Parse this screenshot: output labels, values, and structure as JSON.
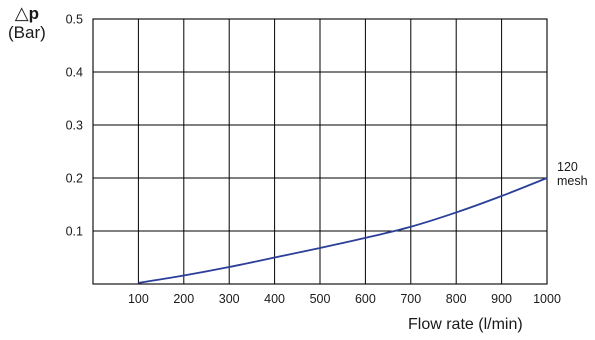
{
  "chart_data": {
    "type": "line",
    "ylabel_symbol": "△",
    "ylabel_bold": "p",
    "ylabel_unit": "(Bar)",
    "xlabel": "Flow rate (l/min)",
    "xlim": [
      0,
      1000
    ],
    "ylim": [
      0,
      0.5
    ],
    "xticks": [
      "100",
      "200",
      "300",
      "400",
      "500",
      "600",
      "700",
      "800",
      "900",
      "1000"
    ],
    "yticks": [
      "0.1",
      "0.2",
      "0.3",
      "0.4",
      "0.5"
    ],
    "grid": true,
    "line_color": "#2b3f99",
    "series": [
      {
        "name_line1": "120",
        "name_line2": "mesh",
        "x": [
          100,
          200,
          300,
          400,
          500,
          600,
          700,
          800,
          900,
          1000
        ],
        "y": [
          0.002,
          0.016,
          0.032,
          0.05,
          0.068,
          0.087,
          0.108,
          0.135,
          0.166,
          0.2
        ]
      }
    ]
  }
}
